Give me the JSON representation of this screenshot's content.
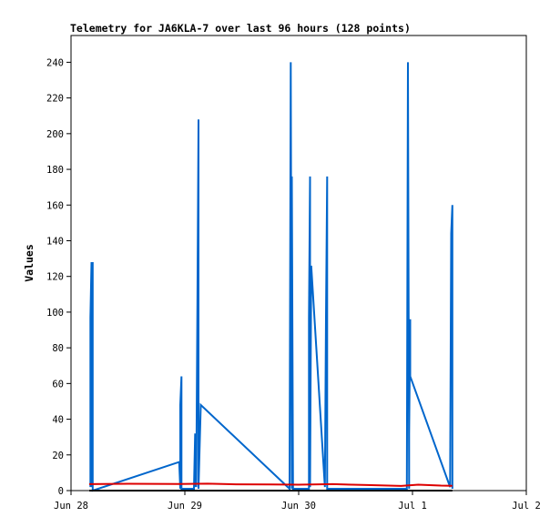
{
  "chart_data": {
    "type": "line",
    "title": "Telemetry for JA6KLA-7 over last 96 hours (128 points)",
    "xlabel": "",
    "ylabel": "Values",
    "xlim": [
      0,
      4
    ],
    "ylim": [
      0,
      255
    ],
    "y_ticks": [
      0,
      20,
      40,
      60,
      80,
      100,
      120,
      140,
      160,
      180,
      200,
      220,
      240
    ],
    "x_ticks": [
      {
        "value": 0,
        "label": "Jun 28"
      },
      {
        "value": 1,
        "label": "Jun 29"
      },
      {
        "value": 2,
        "label": "Jun 30"
      },
      {
        "value": 3,
        "label": "Jul 1"
      },
      {
        "value": 4,
        "label": "Jul 2"
      }
    ],
    "grid": false,
    "series": [
      {
        "color": "#0066cc",
        "points": [
          [
            0.17,
            2
          ],
          [
            0.17,
            97
          ],
          [
            0.18,
            128
          ],
          [
            0.18,
            2
          ],
          [
            0.19,
            128
          ],
          [
            0.19,
            0
          ],
          [
            0.95,
            16
          ],
          [
            0.96,
            1
          ],
          [
            0.96,
            48
          ],
          [
            0.97,
            64
          ],
          [
            0.97,
            1
          ],
          [
            1.08,
            1
          ],
          [
            1.09,
            32
          ],
          [
            1.09,
            2
          ],
          [
            1.1,
            20
          ],
          [
            1.1,
            2
          ],
          [
            1.11,
            104
          ],
          [
            1.12,
            208
          ],
          [
            1.12,
            1
          ],
          [
            1.14,
            48
          ],
          [
            1.92,
            1
          ],
          [
            1.93,
            240
          ],
          [
            1.94,
            1
          ],
          [
            1.94,
            176
          ],
          [
            1.95,
            1
          ],
          [
            2.09,
            1
          ],
          [
            2.09,
            97
          ],
          [
            2.1,
            176
          ],
          [
            2.1,
            2
          ],
          [
            2.11,
            126
          ],
          [
            2.23,
            2
          ],
          [
            2.24,
            97
          ],
          [
            2.25,
            176
          ],
          [
            2.25,
            1
          ],
          [
            2.95,
            1
          ],
          [
            2.96,
            240
          ],
          [
            2.97,
            1
          ],
          [
            2.97,
            32
          ],
          [
            2.98,
            96
          ],
          [
            2.98,
            64
          ],
          [
            3.33,
            2
          ],
          [
            3.34,
            144
          ],
          [
            3.35,
            160
          ],
          [
            3.35,
            1
          ]
        ]
      },
      {
        "color": "#dd0000",
        "points": [
          [
            0.16,
            3.6
          ],
          [
            0.5,
            3.8
          ],
          [
            0.95,
            3.7
          ],
          [
            1.2,
            3.9
          ],
          [
            1.45,
            3.5
          ],
          [
            1.75,
            3.4
          ],
          [
            2.0,
            3.3
          ],
          [
            2.3,
            3.6
          ],
          [
            2.6,
            3.1
          ],
          [
            2.9,
            2.6
          ],
          [
            3.05,
            3.3
          ],
          [
            3.25,
            2.8
          ],
          [
            3.35,
            2.7
          ]
        ]
      },
      {
        "color": "#000000",
        "points": [
          [
            0.16,
            0
          ],
          [
            3.35,
            0
          ]
        ]
      }
    ]
  }
}
